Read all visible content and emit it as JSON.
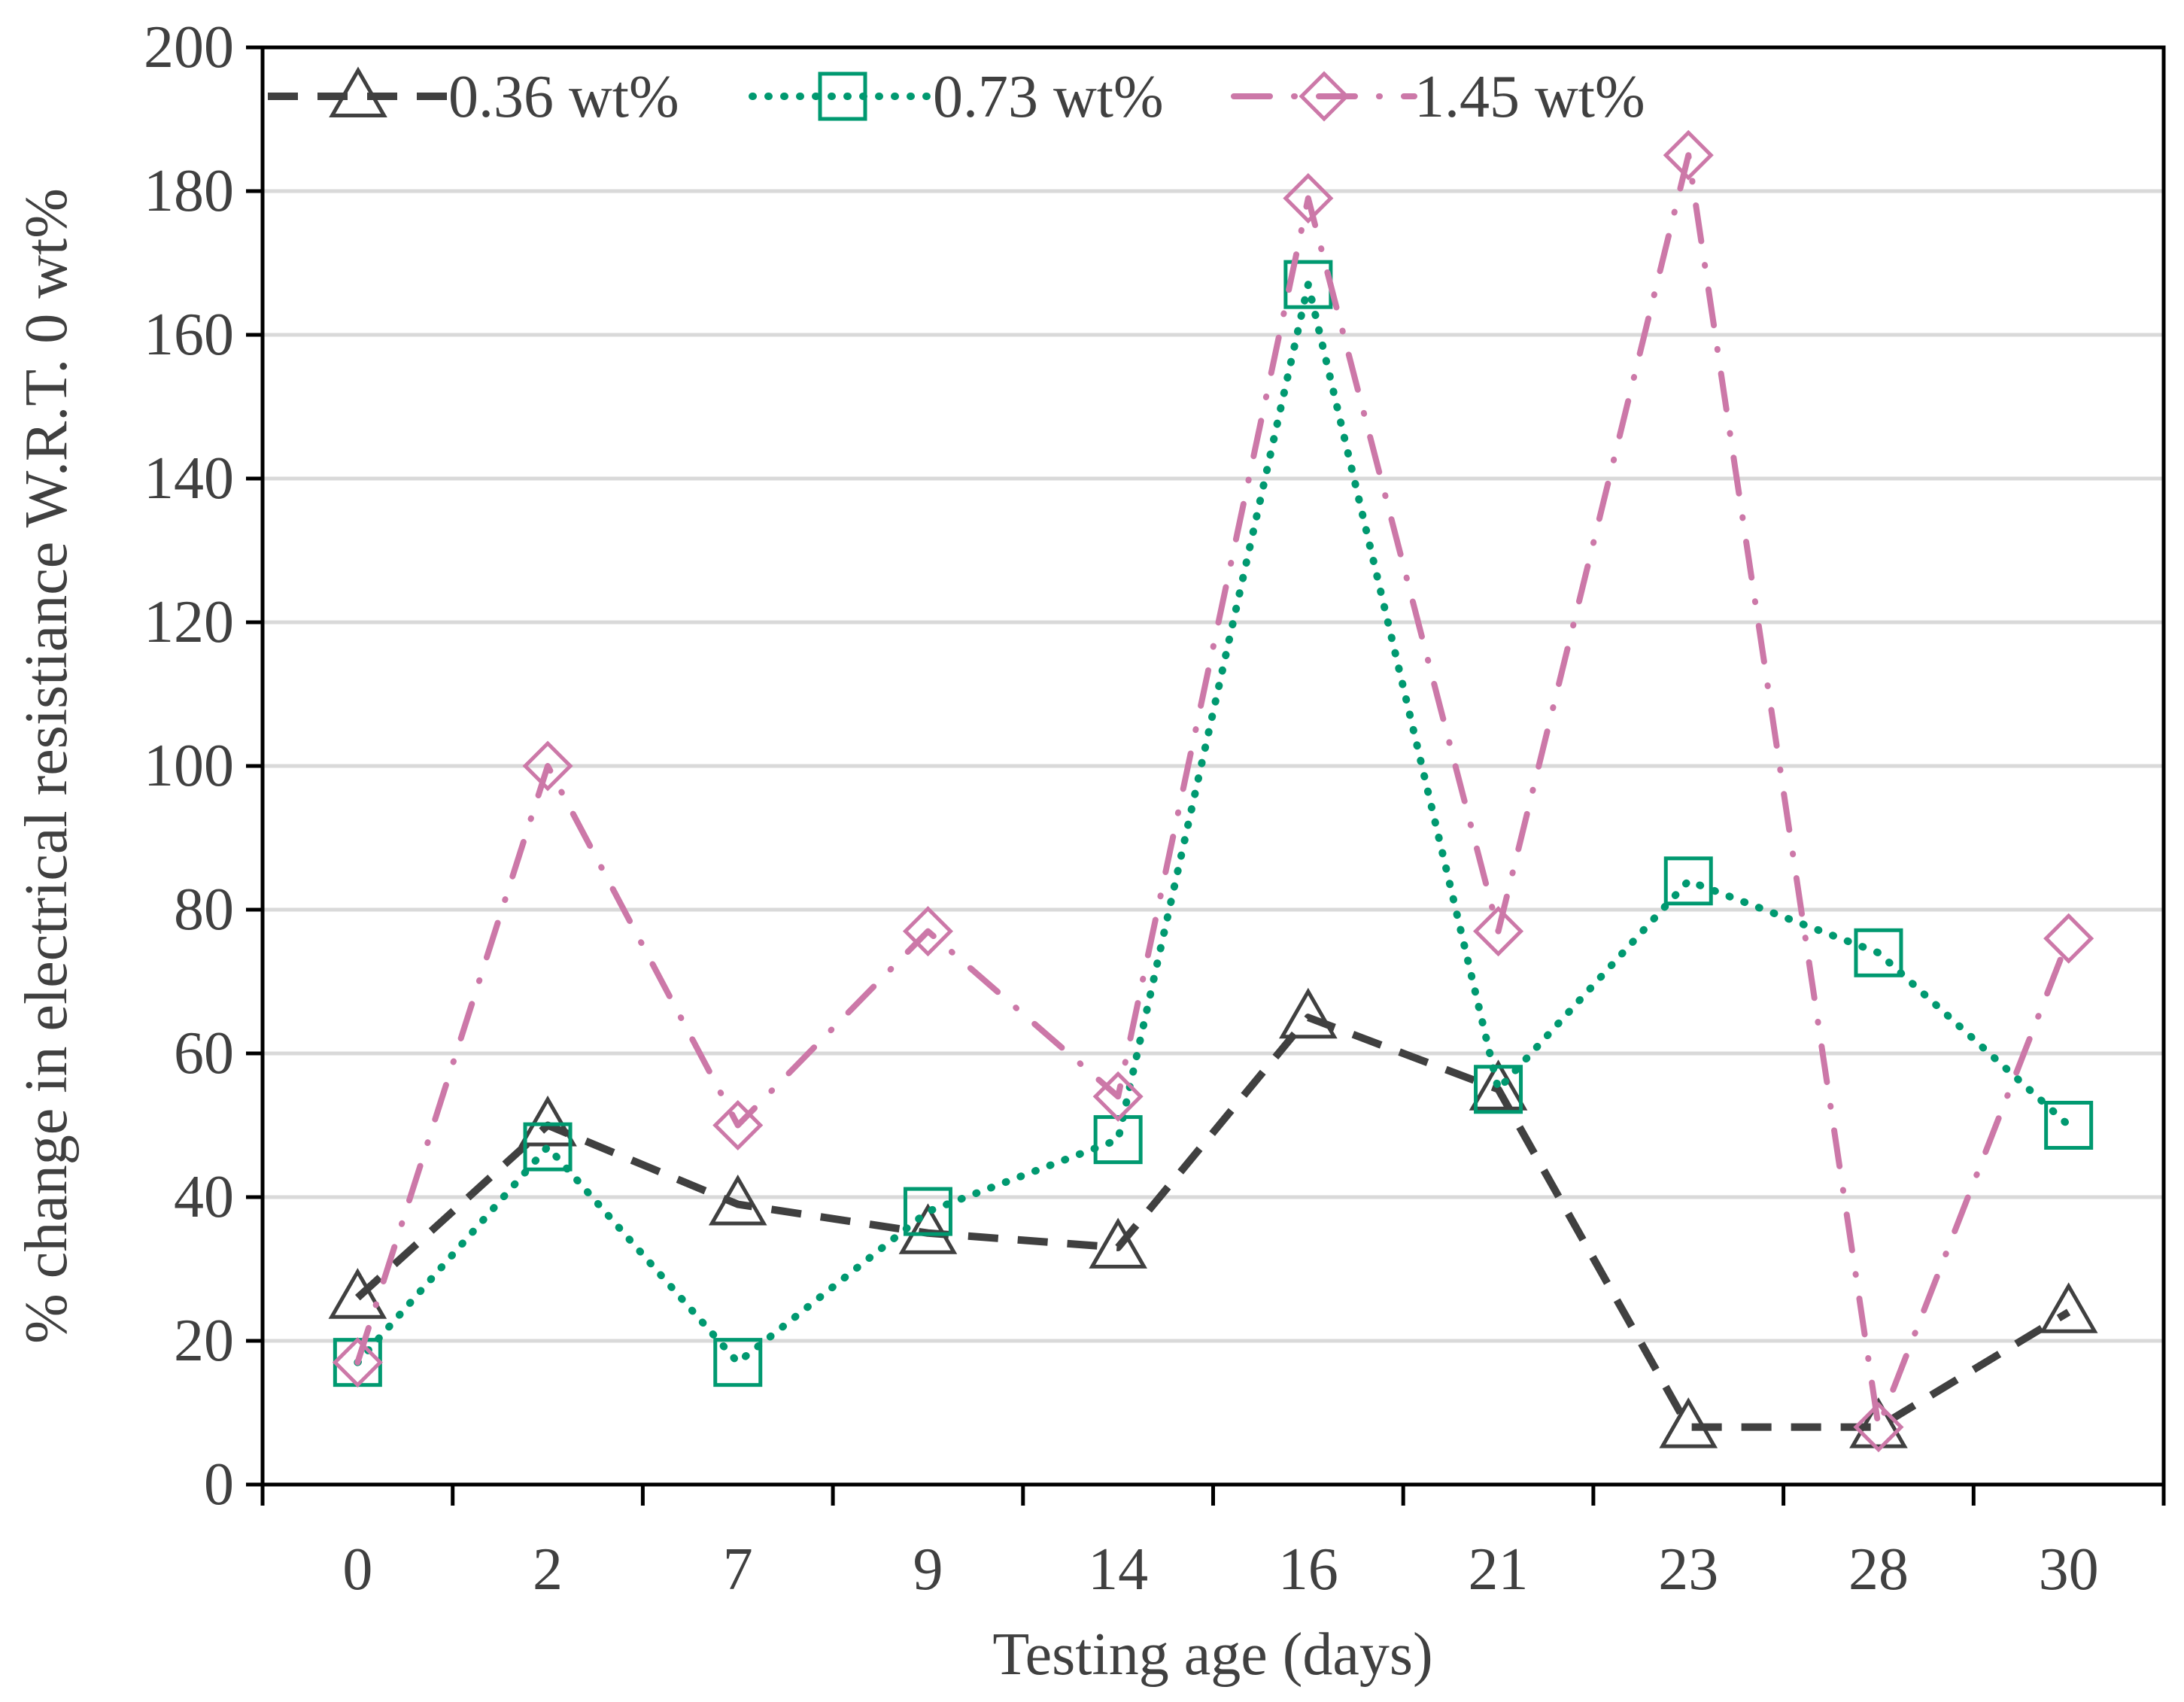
{
  "chart_data": {
    "type": "line",
    "title": "",
    "xlabel": "Testing age (days)",
    "ylabel": "% change in electrical resistiance W.R.T. 0 wt%",
    "categories": [
      "0",
      "2",
      "7",
      "9",
      "14",
      "16",
      "21",
      "23",
      "28",
      "30"
    ],
    "ylim": [
      0,
      200
    ],
    "yticks": [
      "0",
      "20",
      "40",
      "60",
      "80",
      "100",
      "120",
      "140",
      "160",
      "180",
      "200"
    ],
    "grid": "horizontal",
    "legend_position": "top",
    "series": [
      {
        "name": "0.36 wt%",
        "color": "#404040",
        "marker": "triangle",
        "line_style": "dashed",
        "values": [
          26,
          50,
          39,
          35,
          33,
          65,
          55,
          8,
          8,
          24
        ]
      },
      {
        "name": "0.73 wt%",
        "color": "#009970",
        "marker": "square",
        "line_style": "dotted",
        "values": [
          17,
          47,
          17,
          38,
          48,
          167,
          55,
          84,
          74,
          50
        ]
      },
      {
        "name": "1.45 wt%",
        "color": "#cc78a8",
        "marker": "diamond",
        "line_style": "dash-dot",
        "values": [
          17,
          100,
          50,
          77,
          54,
          179,
          77,
          185,
          8,
          76
        ]
      }
    ]
  }
}
